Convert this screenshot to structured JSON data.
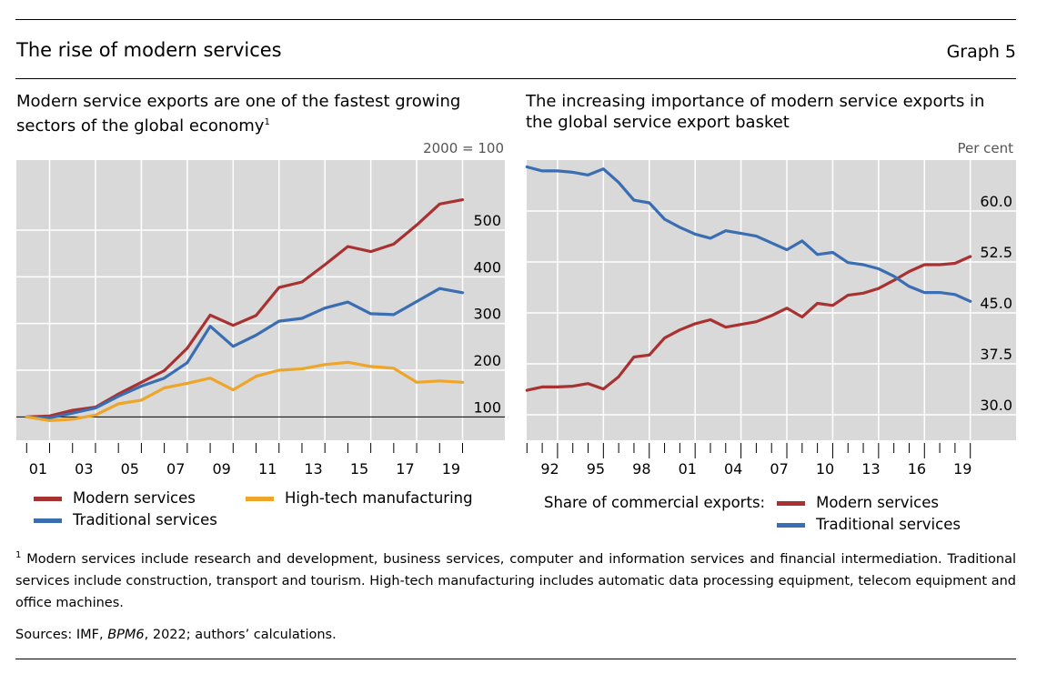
{
  "header": {
    "title": "The rise of modern services",
    "graph_label": "Graph 5"
  },
  "colors": {
    "modern": "#a83232",
    "traditional": "#3a6db1",
    "hightech": "#eda52a",
    "plot_bg": "#d9d9d9",
    "grid": "#ffffff"
  },
  "left_panel": {
    "subtitle_line1": "Modern service exports are one of the fastest growing",
    "subtitle_line2": "sectors of the global economy",
    "footnote_mark": "1",
    "unit": "2000 = 100",
    "legend": {
      "modern": "Modern services",
      "traditional": "Traditional services",
      "hightech": "High-tech manufacturing"
    }
  },
  "right_panel": {
    "subtitle_line1": "The increasing importance of modern service exports in",
    "subtitle_line2": "the global service export basket",
    "unit": "Per cent",
    "legend": {
      "prefix": "Share of commercial exports:",
      "modern": "Modern services",
      "traditional": "Traditional services"
    }
  },
  "footnotes": {
    "note_mark": "1",
    "note_text": "Modern services include research and development, business services, computer and information services and financial intermediation. Traditional services include construction, transport and tourism. High-tech manufacturing includes automatic data processing equipment, telecom equipment and office machines.",
    "sources_prefix": "Sources: IMF, ",
    "sources_italic": "BPM6",
    "sources_suffix": ", 2022; authors’ calculations."
  },
  "chart_data": [
    {
      "type": "line",
      "title": "Modern service exports are one of the fastest growing sectors of the global economy",
      "ylabel": "2000 = 100",
      "xlabel": "",
      "x": [
        2000,
        2001,
        2002,
        2003,
        2004,
        2005,
        2006,
        2007,
        2008,
        2009,
        2010,
        2011,
        2012,
        2013,
        2014,
        2015,
        2016,
        2017,
        2018,
        2019
      ],
      "xtick_labels": [
        "01",
        "03",
        "05",
        "07",
        "09",
        "11",
        "13",
        "15",
        "17",
        "19"
      ],
      "ytick_labels": [
        "100",
        "200",
        "300",
        "400",
        "500"
      ],
      "yticks": [
        100,
        200,
        300,
        400,
        500
      ],
      "ylim": [
        50,
        650
      ],
      "reference_line": 100,
      "grid": true,
      "legend_position": "bottom",
      "series": [
        {
          "name": "Modern services",
          "color_key": "modern",
          "values": [
            100,
            102,
            114,
            121,
            149,
            174,
            199,
            247,
            318,
            296,
            317,
            377,
            389,
            426,
            465,
            454,
            470,
            511,
            556,
            565
          ]
        },
        {
          "name": "Traditional services",
          "color_key": "traditional",
          "values": [
            100,
            98,
            108,
            119,
            144,
            166,
            183,
            216,
            294,
            251,
            275,
            305,
            311,
            333,
            346,
            321,
            319,
            347,
            375,
            366
          ]
        },
        {
          "name": "High-tech manufacturing",
          "color_key": "hightech",
          "values": [
            100,
            92,
            95,
            104,
            128,
            136,
            162,
            172,
            183,
            158,
            187,
            200,
            203,
            212,
            217,
            208,
            204,
            174,
            177,
            174
          ]
        }
      ]
    },
    {
      "type": "line",
      "title": "The increasing importance of modern service exports in the global service export basket",
      "ylabel": "Per cent",
      "xlabel": "",
      "x": [
        1990,
        1991,
        1992,
        1993,
        1994,
        1995,
        1996,
        1997,
        1998,
        1999,
        2000,
        2001,
        2002,
        2003,
        2004,
        2005,
        2006,
        2007,
        2008,
        2009,
        2010,
        2011,
        2012,
        2013,
        2014,
        2015,
        2016,
        2017,
        2018,
        2019
      ],
      "xtick_labels": [
        "92",
        "95",
        "98",
        "01",
        "04",
        "07",
        "10",
        "13",
        "16",
        "19"
      ],
      "ytick_labels": [
        "30.0",
        "37.5",
        "45.0",
        "52.5",
        "60.0"
      ],
      "yticks": [
        30,
        37.5,
        45,
        52.5,
        60
      ],
      "ylim": [
        26.25,
        67.5
      ],
      "grid": true,
      "legend_position": "bottom",
      "series": [
        {
          "name": "Modern services",
          "color_key": "modern",
          "values": [
            33.6,
            34.1,
            34.1,
            34.2,
            34.6,
            33.8,
            35.6,
            38.5,
            38.8,
            41.3,
            42.5,
            43.4,
            44.0,
            42.9,
            43.3,
            43.7,
            44.6,
            45.7,
            44.4,
            46.4,
            46.1,
            47.6,
            47.9,
            48.6,
            49.8,
            51.1,
            52.1,
            52.1,
            52.3,
            53.3
          ]
        },
        {
          "name": "Traditional services",
          "color_key": "traditional",
          "values": [
            66.5,
            65.9,
            65.9,
            65.7,
            65.3,
            66.2,
            64.2,
            61.6,
            61.2,
            58.8,
            57.6,
            56.6,
            56.0,
            57.1,
            56.7,
            56.3,
            55.3,
            54.3,
            55.6,
            53.6,
            53.9,
            52.4,
            52.1,
            51.5,
            50.4,
            48.9,
            48.0,
            48.0,
            47.7,
            46.7
          ]
        }
      ]
    }
  ]
}
